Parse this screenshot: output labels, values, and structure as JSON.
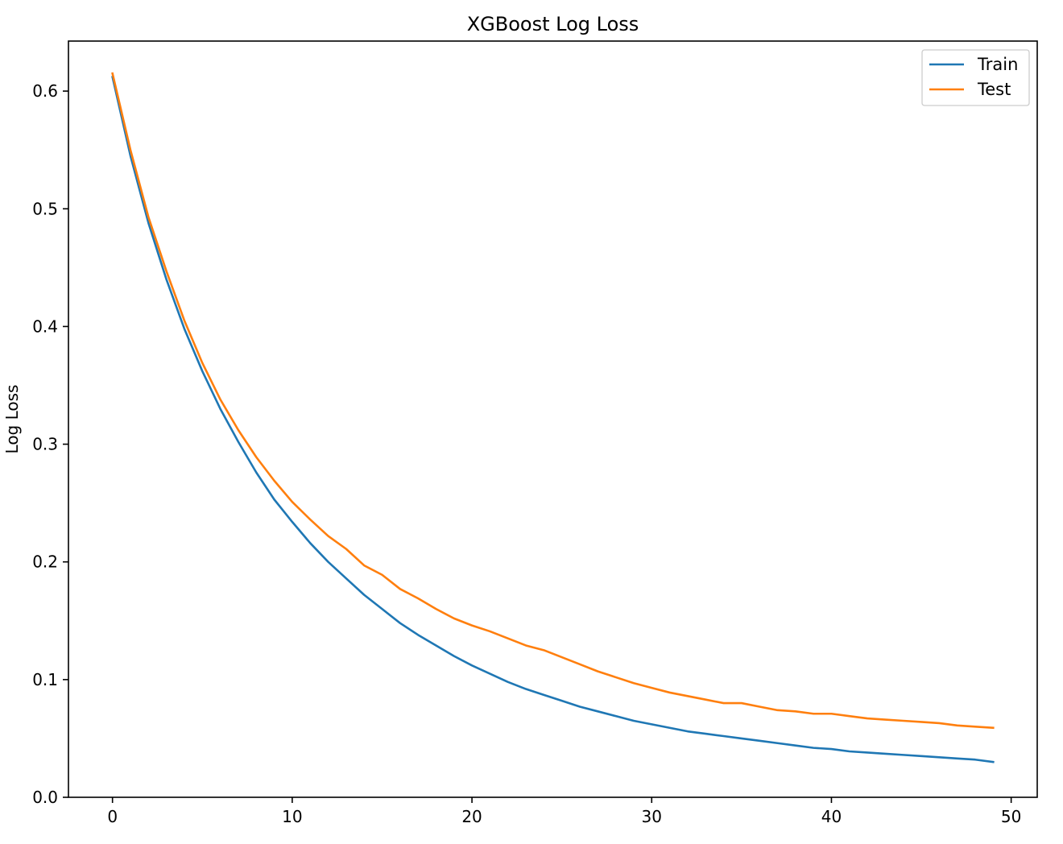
{
  "chart_data": {
    "type": "line",
    "title": "XGBoost Log Loss",
    "xlabel": "",
    "ylabel": "Log Loss",
    "xlim": [
      -2.45,
      51.45
    ],
    "ylim": [
      0.0,
      0.6425
    ],
    "xticks": [
      "0",
      "10",
      "20",
      "30",
      "40",
      "50"
    ],
    "yticks": [
      "0.0",
      "0.1",
      "0.2",
      "0.3",
      "0.4",
      "0.5",
      "0.6"
    ],
    "grid": false,
    "legend_position": "top-right",
    "x": [
      0,
      1,
      2,
      3,
      4,
      5,
      6,
      7,
      8,
      9,
      10,
      11,
      12,
      13,
      14,
      15,
      16,
      17,
      18,
      19,
      20,
      21,
      22,
      23,
      24,
      25,
      26,
      27,
      28,
      29,
      30,
      31,
      32,
      33,
      34,
      35,
      36,
      37,
      38,
      39,
      40,
      41,
      42,
      43,
      44,
      45,
      46,
      47,
      48,
      49
    ],
    "series": [
      {
        "name": "Train",
        "color": "#1f77b4",
        "values": [
          0.612,
          0.545,
          0.488,
          0.44,
          0.398,
          0.362,
          0.33,
          0.302,
          0.276,
          0.253,
          0.234,
          0.216,
          0.2,
          0.186,
          0.172,
          0.16,
          0.148,
          0.138,
          0.129,
          0.12,
          0.112,
          0.105,
          0.098,
          0.092,
          0.087,
          0.082,
          0.077,
          0.073,
          0.069,
          0.065,
          0.062,
          0.059,
          0.056,
          0.054,
          0.052,
          0.05,
          0.048,
          0.046,
          0.044,
          0.042,
          0.041,
          0.039,
          0.038,
          0.037,
          0.036,
          0.035,
          0.034,
          0.033,
          0.032,
          0.03
        ]
      },
      {
        "name": "Test",
        "color": "#ff7f0e",
        "values": [
          0.615,
          0.55,
          0.493,
          0.447,
          0.405,
          0.369,
          0.338,
          0.312,
          0.289,
          0.269,
          0.251,
          0.236,
          0.222,
          0.211,
          0.197,
          0.189,
          0.177,
          0.169,
          0.16,
          0.152,
          0.146,
          0.141,
          0.135,
          0.129,
          0.125,
          0.119,
          0.113,
          0.107,
          0.102,
          0.097,
          0.093,
          0.089,
          0.086,
          0.083,
          0.08,
          0.08,
          0.077,
          0.074,
          0.073,
          0.071,
          0.071,
          0.069,
          0.067,
          0.066,
          0.065,
          0.064,
          0.063,
          0.061,
          0.06,
          0.059
        ]
      }
    ]
  }
}
